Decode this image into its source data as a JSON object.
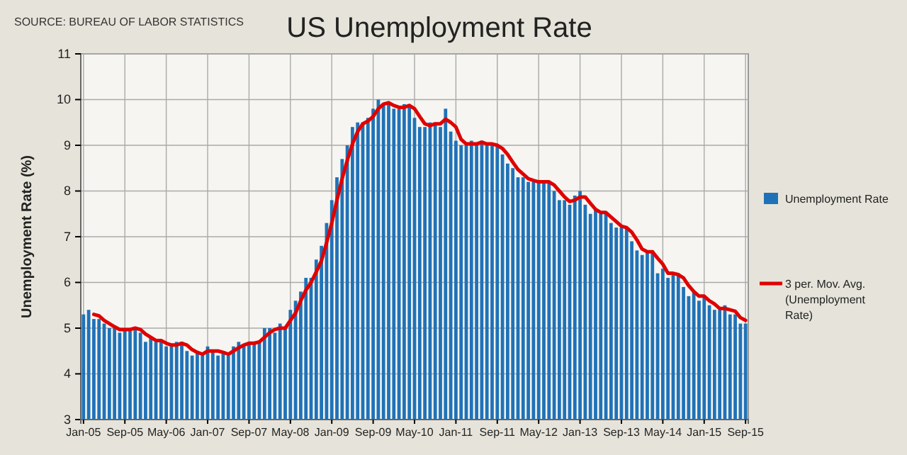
{
  "chart_data": {
    "type": "bar",
    "title": "US Unemployment Rate",
    "ylabel": "Unemployment Rate (%)",
    "annotations": [
      "SOURCE: BUREAU OF LABOR STATISTICS"
    ],
    "categories": [
      "Jan-05",
      null,
      null,
      null,
      null,
      null,
      null,
      null,
      "Sep-05",
      null,
      null,
      null,
      null,
      null,
      null,
      null,
      "May-06",
      null,
      null,
      null,
      null,
      null,
      null,
      null,
      "Jan-07",
      null,
      null,
      null,
      null,
      null,
      null,
      null,
      "Sep-07",
      null,
      null,
      null,
      null,
      null,
      null,
      null,
      "May-08",
      null,
      null,
      null,
      null,
      null,
      null,
      null,
      "Jan-09",
      null,
      null,
      null,
      null,
      null,
      null,
      null,
      "Sep-09",
      null,
      null,
      null,
      null,
      null,
      null,
      null,
      "May-10",
      null,
      null,
      null,
      null,
      null,
      null,
      null,
      "Jan-11",
      null,
      null,
      null,
      null,
      null,
      null,
      null,
      "Sep-11",
      null,
      null,
      null,
      null,
      null,
      null,
      null,
      "May-12",
      null,
      null,
      null,
      null,
      null,
      null,
      null,
      "Jan-13",
      null,
      null,
      null,
      null,
      null,
      null,
      null,
      "Sep-13",
      null,
      null,
      null,
      null,
      null,
      null,
      null,
      "May-14",
      null,
      null,
      null,
      null,
      null,
      null,
      null,
      "Jan-15",
      null,
      null,
      null,
      null,
      null,
      null,
      null,
      "Sep-15"
    ],
    "series": [
      {
        "name": "Unemployment Rate",
        "color": "#1f72b8",
        "values": [
          5.3,
          5.4,
          5.2,
          5.2,
          5.1,
          5.0,
          5.0,
          4.9,
          5.0,
          5.0,
          5.0,
          4.9,
          4.7,
          4.8,
          4.7,
          4.7,
          4.6,
          4.6,
          4.7,
          4.7,
          4.5,
          4.4,
          4.5,
          4.4,
          4.6,
          4.5,
          4.4,
          4.5,
          4.4,
          4.6,
          4.7,
          4.6,
          4.7,
          4.7,
          4.7,
          5.0,
          5.0,
          4.9,
          5.1,
          5.0,
          5.4,
          5.6,
          5.8,
          6.1,
          6.1,
          6.5,
          6.8,
          7.3,
          7.8,
          8.3,
          8.7,
          9.0,
          9.4,
          9.5,
          9.5,
          9.6,
          9.8,
          10.0,
          9.9,
          9.9,
          9.8,
          9.8,
          9.9,
          9.9,
          9.6,
          9.4,
          9.4,
          9.5,
          9.5,
          9.4,
          9.8,
          9.3,
          9.1,
          9.0,
          9.0,
          9.1,
          9.0,
          9.1,
          9.0,
          9.0,
          9.0,
          8.8,
          8.6,
          8.5,
          8.3,
          8.3,
          8.2,
          8.2,
          8.2,
          8.2,
          8.2,
          8.0,
          7.8,
          7.8,
          7.7,
          7.9,
          8.0,
          7.7,
          7.5,
          7.6,
          7.5,
          7.5,
          7.3,
          7.2,
          7.2,
          7.2,
          6.9,
          6.7,
          6.6,
          6.7,
          6.7,
          6.2,
          6.3,
          6.1,
          6.2,
          6.2,
          5.9,
          5.7,
          5.8,
          5.6,
          5.7,
          5.5,
          5.4,
          5.4,
          5.5,
          5.3,
          5.3,
          5.1,
          5.1
        ]
      },
      {
        "name": "3 per. Mov. Avg. (Unemployment Rate)",
        "type": "line",
        "color": "#e00000",
        "values": [
          null,
          null,
          5.3,
          5.27,
          5.17,
          5.1,
          5.03,
          4.97,
          4.97,
          4.97,
          5.0,
          4.97,
          4.87,
          4.8,
          4.73,
          4.73,
          4.67,
          4.63,
          4.63,
          4.67,
          4.63,
          4.53,
          4.47,
          4.43,
          4.5,
          4.5,
          4.5,
          4.47,
          4.43,
          4.5,
          4.57,
          4.63,
          4.67,
          4.67,
          4.7,
          4.8,
          4.9,
          4.97,
          5.0,
          5.0,
          5.17,
          5.33,
          5.6,
          5.83,
          6.0,
          6.23,
          6.47,
          6.87,
          7.3,
          7.8,
          8.27,
          8.67,
          9.03,
          9.3,
          9.47,
          9.53,
          9.63,
          9.8,
          9.9,
          9.93,
          9.87,
          9.83,
          9.83,
          9.87,
          9.8,
          9.63,
          9.47,
          9.43,
          9.47,
          9.47,
          9.57,
          9.5,
          9.4,
          9.13,
          9.03,
          9.03,
          9.03,
          9.07,
          9.03,
          9.03,
          9.0,
          8.93,
          8.8,
          8.63,
          8.47,
          8.37,
          8.27,
          8.23,
          8.2,
          8.2,
          8.2,
          8.13,
          8.0,
          7.87,
          7.77,
          7.8,
          7.87,
          7.87,
          7.73,
          7.6,
          7.53,
          7.53,
          7.43,
          7.33,
          7.23,
          7.2,
          7.1,
          6.93,
          6.73,
          6.67,
          6.67,
          6.53,
          6.4,
          6.2,
          6.2,
          6.17,
          6.1,
          5.93,
          5.8,
          5.7,
          5.7,
          5.6,
          5.53,
          5.43,
          5.43,
          5.4,
          5.37,
          5.23,
          5.17
        ]
      }
    ],
    "ylim": [
      3,
      11
    ],
    "yticks": [
      3,
      4,
      5,
      6,
      7,
      8,
      9,
      10,
      11
    ],
    "grid": true,
    "legend": "right"
  }
}
